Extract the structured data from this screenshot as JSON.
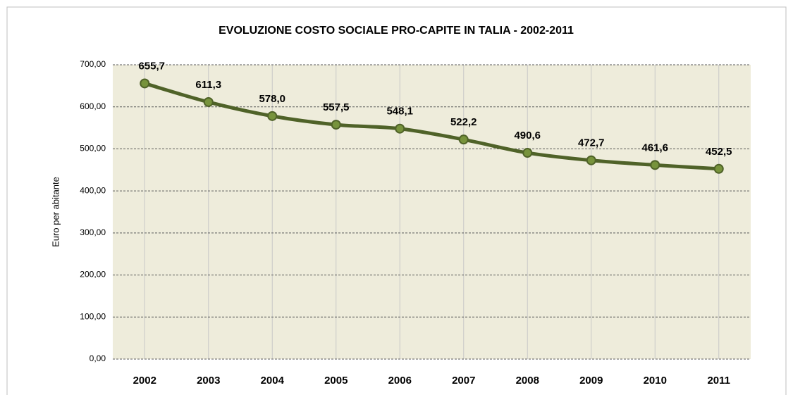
{
  "chart_data": {
    "type": "line",
    "title": "EVOLUZIONE  COSTO SOCIALE PRO-CAPITE IN TALIA - 2002-2011",
    "y_label": "Euro per abitante",
    "categories": [
      "2002",
      "2003",
      "2004",
      "2005",
      "2006",
      "2007",
      "2008",
      "2009",
      "2010",
      "2011"
    ],
    "series": [
      {
        "color": "#4f6228",
        "values": [
          655.7,
          611.3,
          578.0,
          557.5,
          548.1,
          522.2,
          490.6,
          472.7,
          461.6,
          452.5
        ],
        "value_labels": [
          "655,7",
          "611,3",
          "578,0",
          "557,5",
          "548,1",
          "522,2",
          "490,6",
          "472,7",
          "461,6",
          "452,5"
        ]
      }
    ],
    "ylim": [
      0,
      700
    ],
    "yticks": [
      {
        "value": 0,
        "label": "0,00"
      },
      {
        "value": 100,
        "label": "100,00"
      },
      {
        "value": 200,
        "label": "200,00"
      },
      {
        "value": 300,
        "label": "300,00"
      },
      {
        "value": 400,
        "label": "400,00"
      },
      {
        "value": 500,
        "label": "500,00"
      },
      {
        "value": 600,
        "label": "600,00"
      },
      {
        "value": 700,
        "label": "700,00"
      }
    ],
    "grid": true
  }
}
